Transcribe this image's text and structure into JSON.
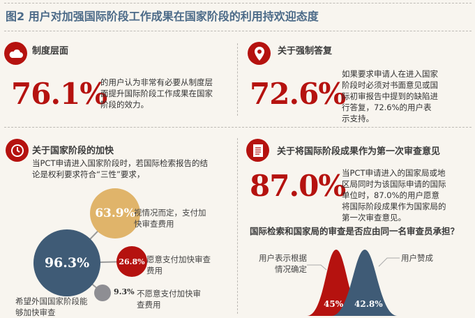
{
  "title": "图2 用户对加强国际阶段工作成果在国家阶段的利用持欢迎态度",
  "colors": {
    "red": "#b5120f",
    "slate": "#3f5b76",
    "gold": "#e0b46a",
    "grey": "#8e8e93",
    "title": "#4b6a88"
  },
  "s1": {
    "icon": "cloud-icon",
    "heading": "制度层面",
    "value": "76.1%",
    "text": "的用户认为非常有必要从制度层面提升国际阶段工作成果在国家阶段的效力。"
  },
  "s2": {
    "icon": "location-pin-icon",
    "heading": "关于强制答复",
    "value": "72.6%",
    "text": "如果要求申请人在进入国家阶段时必须对书面意见或国际初审报告中提到的缺陷进行答复，72.6%的用户表示支持。"
  },
  "s3": {
    "icon": "clock-icon",
    "heading": "关于国家阶段的加快",
    "text": "当PCT申请进入国家阶段时，若国际检索报告的结论是权利要求符合“三性”要求，",
    "bubbles": {
      "main": {
        "value": "96.3%",
        "label": "希望外国国家阶段能够加快审查"
      },
      "b1": {
        "value": "63.9%",
        "label": "视情况而定，支付加快审查费用"
      },
      "b2": {
        "value": "26.8%",
        "label": "愿意支付加快审查费用"
      },
      "b3": {
        "value": "9.3%",
        "label": "不愿意支付加快审查费用"
      }
    }
  },
  "s4": {
    "icon": "document-icon",
    "heading": "关于将国际阶段成果作为第一次审查意见",
    "value": "87.0%",
    "text": "当PCT申请进入的国家局或地区局同时为该国际申请的国际单位时，87.0%的用户愿意将国际阶段成果作为国家局的第一次审查意见。",
    "question": "国际检索和国家局的审查是否应由同一名审查员承担？",
    "curves": {
      "red": {
        "value": "45%",
        "label": "用户表示根据情况确定"
      },
      "blue": {
        "value": "42.8%",
        "label": "用户赞成"
      }
    }
  }
}
